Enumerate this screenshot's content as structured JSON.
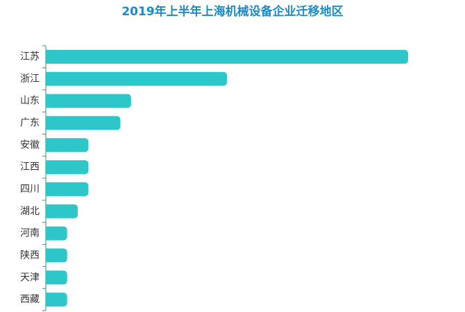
{
  "chart_data": {
    "type": "bar",
    "orientation": "horizontal",
    "title": "2019年上半年上海机械设备企业迁移地区",
    "categories": [
      "江苏",
      "浙江",
      "山东",
      "广东",
      "安徽",
      "江西",
      "四川",
      "湖北",
      "河南",
      "陕西",
      "天津",
      "西藏"
    ],
    "values": [
      34,
      17,
      8,
      7,
      4,
      4,
      4,
      3,
      2,
      2,
      2,
      2
    ],
    "color": "#2ec7c9"
  }
}
